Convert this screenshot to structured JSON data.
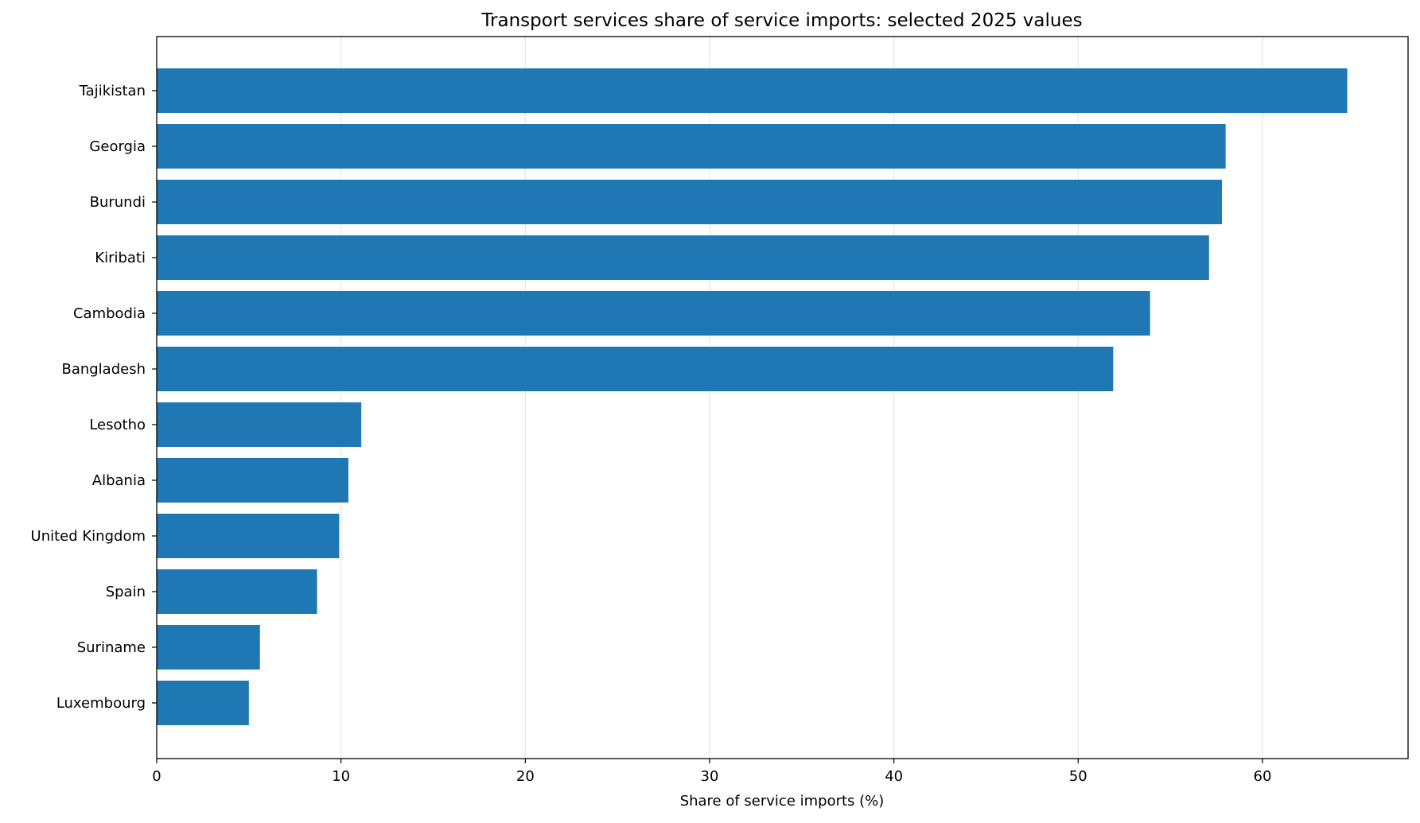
{
  "chart_data": {
    "type": "bar",
    "orientation": "horizontal",
    "title": "Transport services share of service imports: selected 2025 values",
    "xlabel": "Share of service imports (%)",
    "ylabel": "",
    "categories": [
      "Tajikistan",
      "Georgia",
      "Burundi",
      "Kiribati",
      "Cambodia",
      "Bangladesh",
      "Lesotho",
      "Albania",
      "United Kingdom",
      "Spain",
      "Suriname",
      "Luxembourg"
    ],
    "values": [
      64.6,
      58.0,
      57.8,
      57.1,
      53.9,
      51.9,
      11.1,
      10.4,
      9.9,
      8.7,
      5.6,
      5.0
    ],
    "xlim": [
      0,
      67.9
    ],
    "xticks": [
      0,
      10,
      20,
      30,
      40,
      50,
      60
    ],
    "grid": "vertical",
    "legend": "none",
    "bar_color": "#1f77b4",
    "grid_color": "#e6e6e6"
  }
}
